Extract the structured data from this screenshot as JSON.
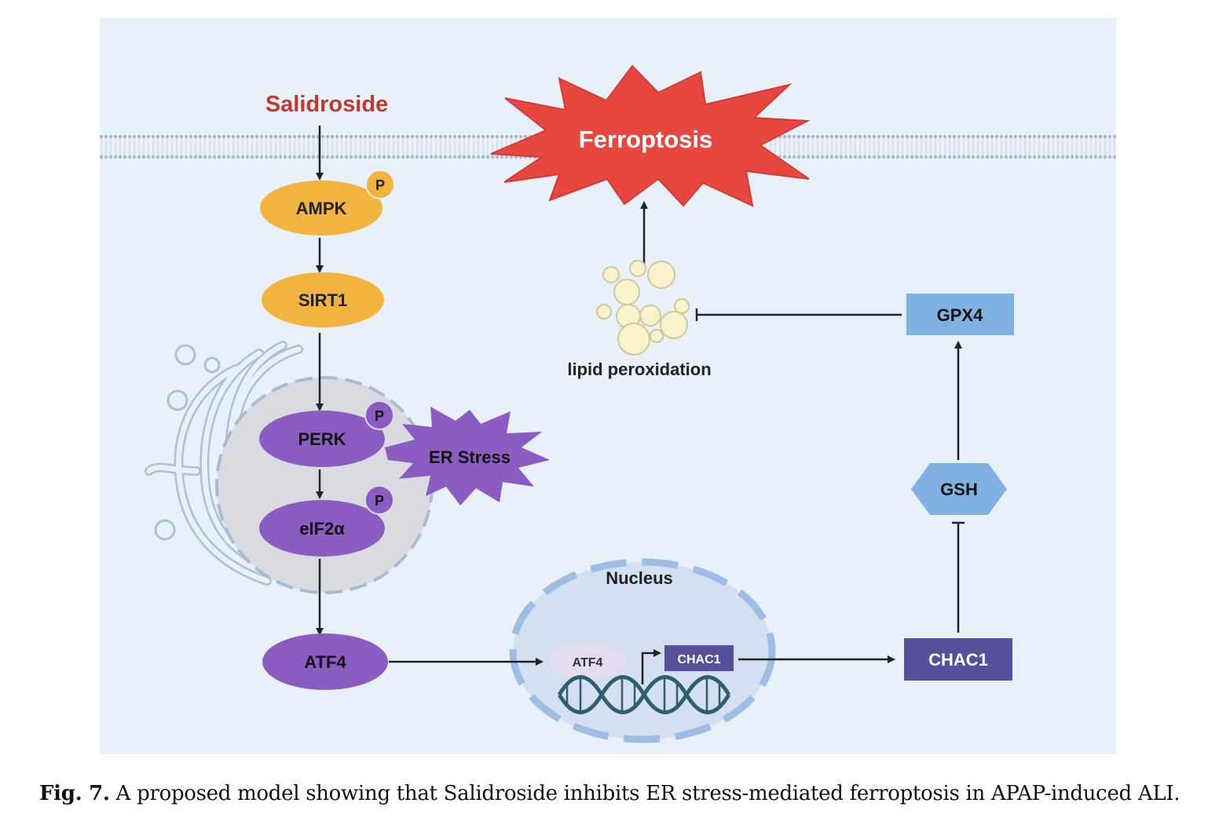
{
  "diagram": {
    "salidroside": "Salidroside",
    "ferroptosis": "Ferroptosis",
    "ampk": "AMPK",
    "sirt1": "SIRT1",
    "perk": "PERK",
    "eif2a": "eIF2α",
    "er_stress": "ER Stress",
    "atf4": "ATF4",
    "nucleus": "Nucleus",
    "nucleus_atf4": "ATF4",
    "nucleus_chac1": "CHAC1",
    "chac1": "CHAC1",
    "gsh": "GSH",
    "gpx4": "GPX4",
    "lipid_peroxidation": "lipid peroxidation",
    "phospho": "P"
  },
  "caption": {
    "label": "Fig. 7.",
    "text": "A proposed model showing that Salidroside inhibits ER stress-mediated ferroptosis in APAP-induced ALI."
  },
  "colors": {
    "background_panel": "#e8f0f9",
    "membrane": "#b9c6d8",
    "salidroside_text": "#c0392b",
    "ferroptosis_fill": "#e8473f",
    "ampk_sirt1": "#f2b33f",
    "purple": "#8b5cc1",
    "chac1_box": "#56509a",
    "blue_box": "#7fb2e2",
    "er_gray": "#d9dbe0",
    "nucleus_fill": "#d4e0f2",
    "lipid_fill": "#f8f3cc"
  }
}
